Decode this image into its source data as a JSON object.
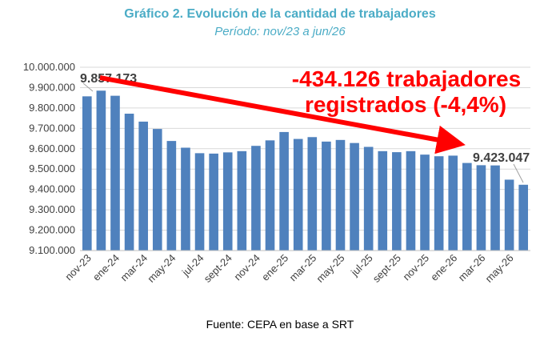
{
  "header": {
    "title": "Gráfico 2. Evolución de la cantidad de trabajadores",
    "subtitle": "Período: nov/23 a jun/26"
  },
  "footer": {
    "source": "Fuente: CEPA en base a SRT"
  },
  "chart_data": {
    "type": "bar",
    "title": "Gráfico 2. Evolución de la cantidad de trabajadores",
    "subtitle": "Período: nov/23 a jun/26",
    "xlabel": "",
    "ylabel": "",
    "ylim": [
      9100000,
      10000000
    ],
    "yticks": [
      9100000,
      9200000,
      9300000,
      9400000,
      9500000,
      9600000,
      9700000,
      9800000,
      9900000,
      10000000
    ],
    "ytick_labels": [
      "9.100.000",
      "9.200.000",
      "9.300.000",
      "9.400.000",
      "9.500.000",
      "9.600.000",
      "9.700.000",
      "9.800.000",
      "9.900.000",
      "10.000.000"
    ],
    "grid": true,
    "bar_color": "#4f81bd",
    "categories": [
      "nov-23",
      "dic-23",
      "ene-24",
      "feb-24",
      "mar-24",
      "abr-24",
      "may-24",
      "jun-24",
      "jul-24",
      "ago-24",
      "sept-24",
      "oct-24",
      "nov-24",
      "dic-24",
      "ene-25",
      "feb-25",
      "mar-25",
      "abr-25",
      "may-25",
      "jun-25",
      "jul-25",
      "ago-25",
      "sept-25",
      "oct-25",
      "nov-25",
      "dic-25",
      "ene-26",
      "feb-26",
      "mar-26",
      "abr-26",
      "may-26",
      "jun-26"
    ],
    "tick_labels": [
      "nov-23",
      "",
      "ene-24",
      "",
      "mar-24",
      "",
      "may-24",
      "",
      "jul-24",
      "",
      "sept-24",
      "",
      "nov-24",
      "",
      "ene-25",
      "",
      "mar-25",
      "",
      "may-25",
      "",
      "jul-25",
      "",
      "sept-25",
      "",
      "nov-25",
      "",
      "ene-26",
      "",
      "mar-26",
      "",
      "may-26",
      ""
    ],
    "values": [
      9857173,
      9885000,
      9860000,
      9772000,
      9733000,
      9697000,
      9638000,
      9605000,
      9578000,
      9576000,
      9582000,
      9588000,
      9614000,
      9641000,
      9682000,
      9648000,
      9657000,
      9635000,
      9643000,
      9628000,
      9609000,
      9588000,
      9583000,
      9588000,
      9571000,
      9563000,
      9566000,
      9530000,
      9519000,
      9518000,
      9448000,
      9423047
    ],
    "annotations": [
      {
        "text": "9.857.173",
        "category_index": 0
      },
      {
        "text": "9.423.047",
        "category_index": 31
      },
      {
        "text_line1": "-434.126 trabajadores",
        "text_line2": "registrados (-4,4%)",
        "color": "#ff0000"
      }
    ]
  }
}
